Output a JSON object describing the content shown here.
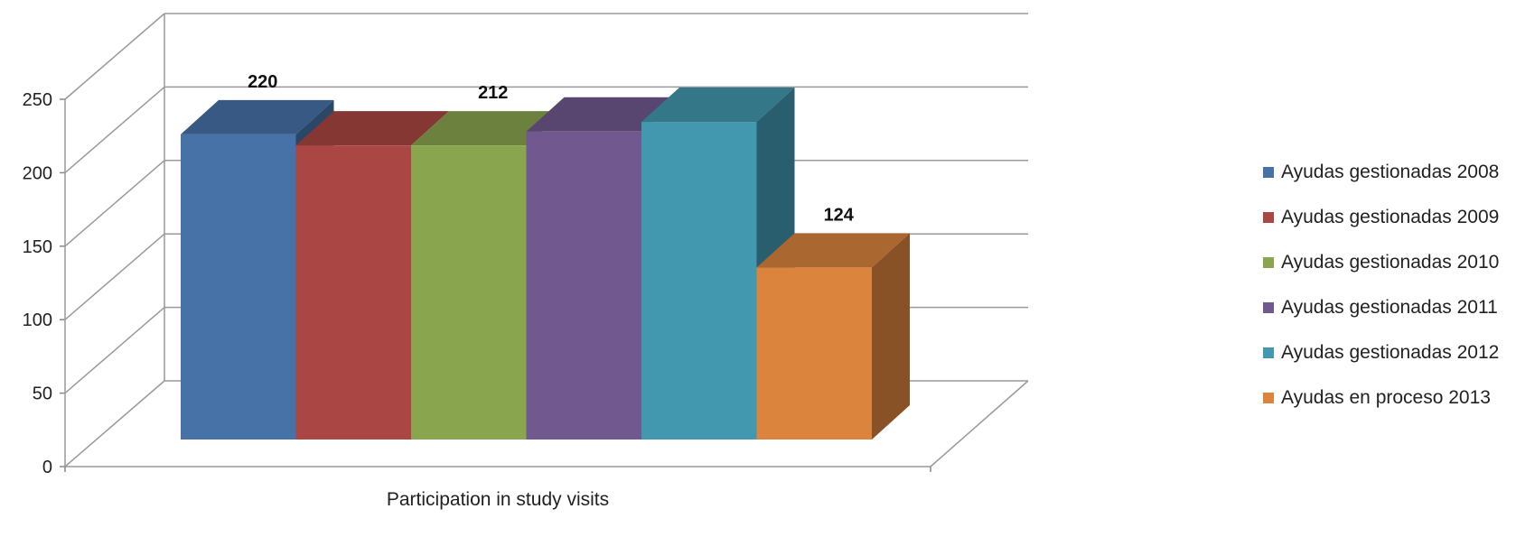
{
  "chart_data": {
    "type": "bar",
    "categories": [
      "Participation in study visits"
    ],
    "xlabel": "Participation in study visits",
    "ylabel": "",
    "ylim": [
      0,
      250
    ],
    "yticks": [
      0,
      50,
      100,
      150,
      200,
      250
    ],
    "grid": true,
    "legend_position": "right",
    "series": [
      {
        "name": "Ayudas gestionadas 2008",
        "values": [
          220
        ],
        "color": "#4672A8",
        "label": "220"
      },
      {
        "name": "Ayudas gestionadas 2009",
        "values": [
          212
        ],
        "color": "#AA4643",
        "label": ""
      },
      {
        "name": "Ayudas gestionadas 2010",
        "values": [
          212
        ],
        "color": "#89A54E",
        "label": "212"
      },
      {
        "name": "Ayudas gestionadas 2011",
        "values": [
          222
        ],
        "color": "#71588F",
        "label": ""
      },
      {
        "name": "Ayudas gestionadas 2012",
        "values": [
          229
        ],
        "color": "#4198AF",
        "label": ""
      },
      {
        "name": "Ayudas en proceso 2013",
        "values": [
          124
        ],
        "color": "#DB843D",
        "label": "124"
      }
    ]
  }
}
